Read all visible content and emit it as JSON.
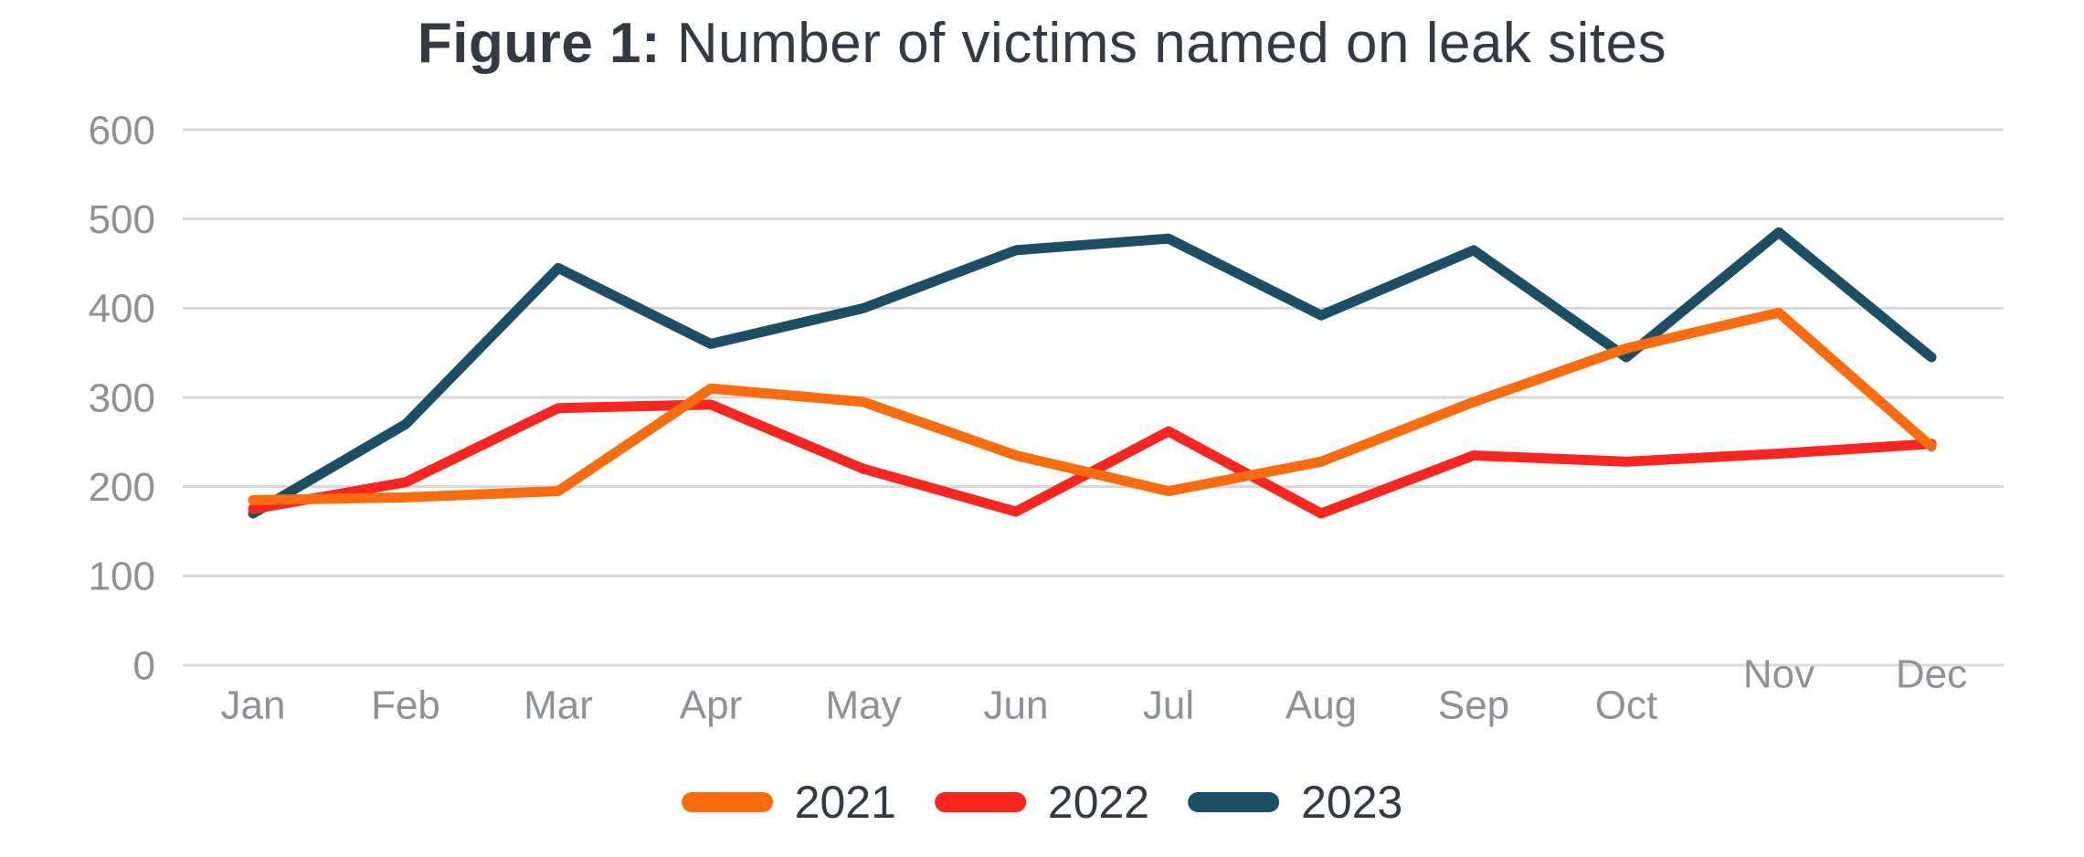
{
  "title": {
    "prefix": "Figure 1:",
    "rest": "Number of victims named on leak sites"
  },
  "chart_data": {
    "type": "line",
    "title": "Figure 1: Number of victims named on leak sites",
    "xlabel": "",
    "ylabel": "",
    "categories": [
      "Jan",
      "Feb",
      "Mar",
      "Apr",
      "May",
      "Jun",
      "Jul",
      "Aug",
      "Sep",
      "Oct",
      "Nov",
      "Dec"
    ],
    "y_ticks": [
      0,
      100,
      200,
      300,
      400,
      500,
      600
    ],
    "ylim": [
      0,
      600
    ],
    "grid": "horizontal",
    "legend_position": "bottom",
    "series": [
      {
        "name": "2021",
        "color": "#FB6C0F",
        "values": [
          185,
          188,
          195,
          310,
          295,
          235,
          195,
          228,
          295,
          355,
          395,
          245
        ]
      },
      {
        "name": "2022",
        "color": "#F8261E",
        "values": [
          175,
          205,
          288,
          292,
          220,
          172,
          262,
          170,
          235,
          228,
          237,
          248
        ]
      },
      {
        "name": "2023",
        "color": "#1C4F66",
        "values": [
          170,
          270,
          445,
          360,
          400,
          465,
          478,
          392,
          465,
          345,
          485,
          345
        ]
      }
    ],
    "colors": {
      "gridline": "#D8D8D8",
      "axis_text": "#8E9195",
      "title_text": "#343A43",
      "background": "#FFFFFF"
    }
  }
}
